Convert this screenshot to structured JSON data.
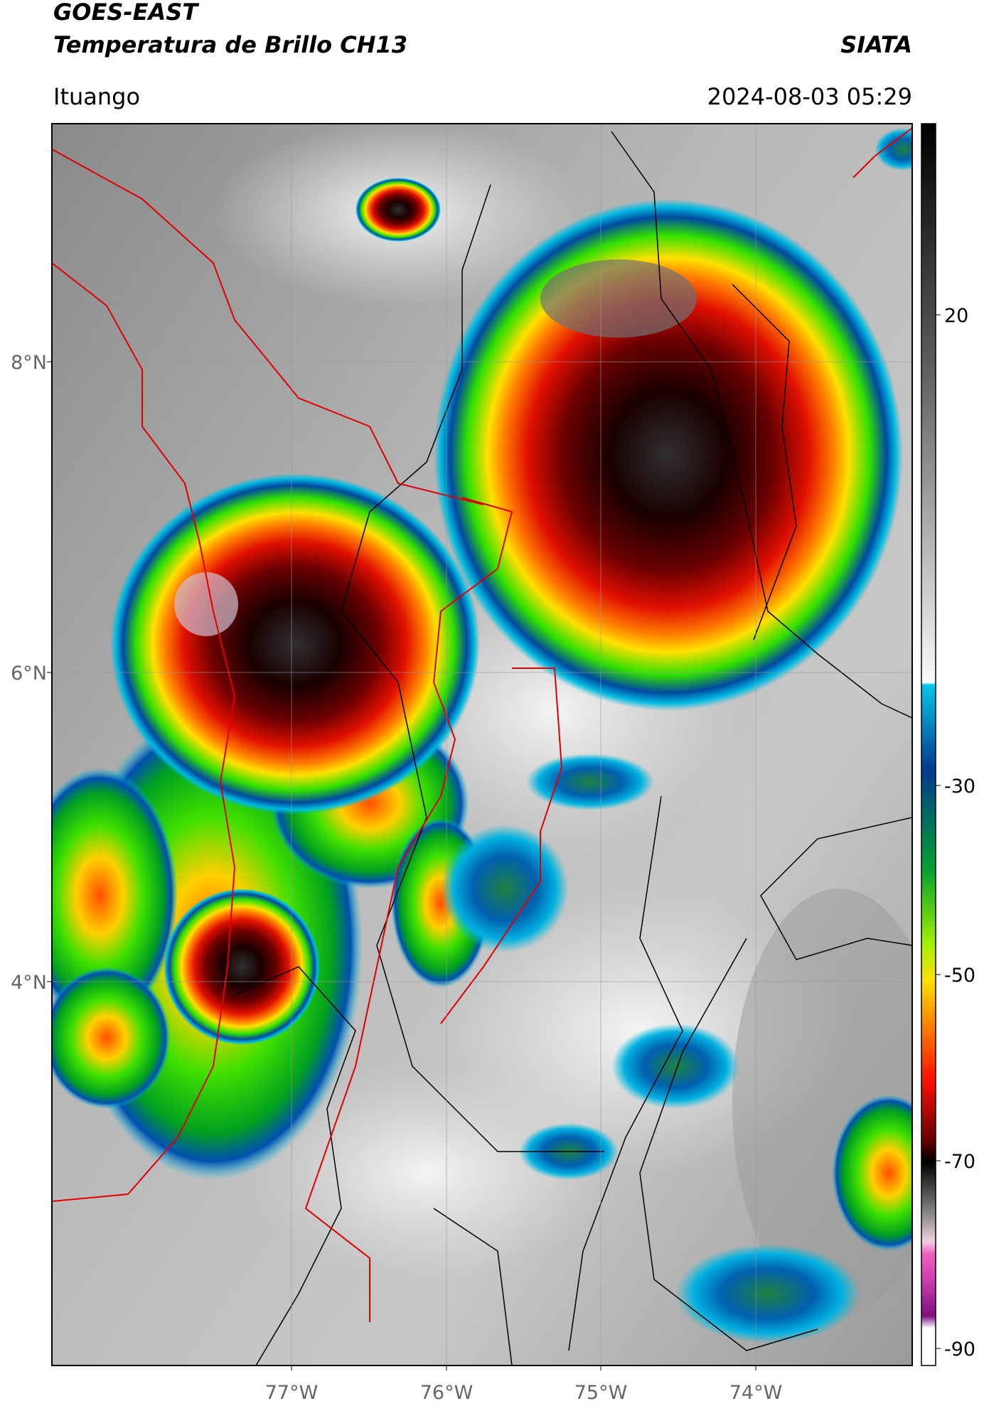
{
  "header": {
    "title": "GOES-EAST",
    "subtitle": "Temperatura de Brillo CH13",
    "source": "SIATA",
    "location": "Ituango",
    "datetime": "2024-08-03 05:29"
  },
  "map": {
    "lat_labels": [
      "8°N",
      "6°N",
      "4°N"
    ],
    "lon_labels": [
      "77°W",
      "76°W",
      "75°W",
      "74°W"
    ]
  },
  "colorbar": {
    "ticks": [
      20,
      -30,
      -50,
      -70,
      -90
    ]
  }
}
